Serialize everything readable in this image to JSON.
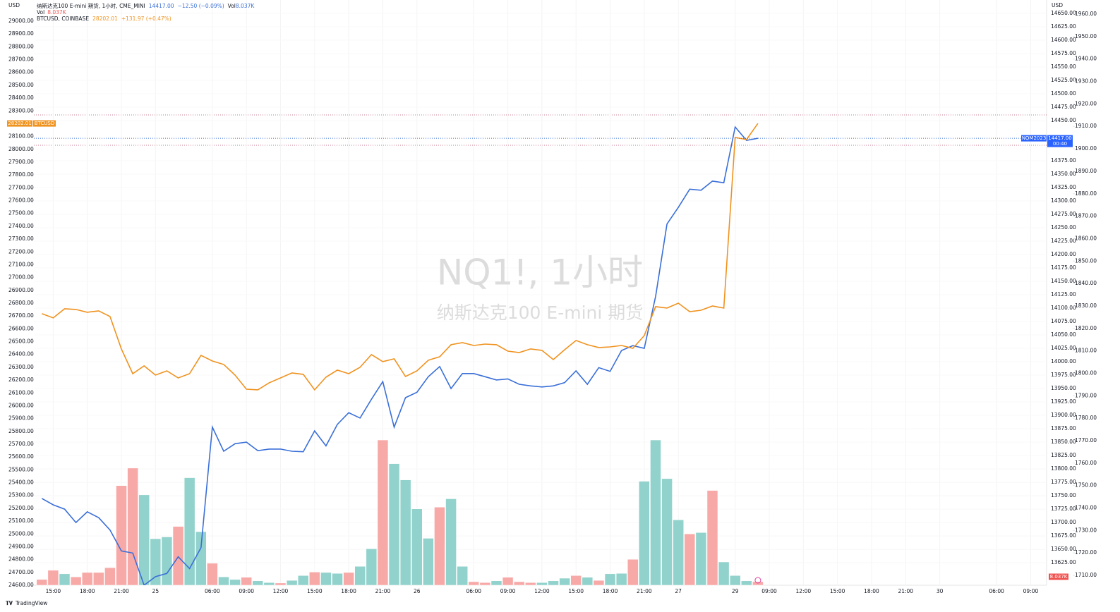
{
  "chart_data": {
    "type": "line",
    "currency_left": "USD",
    "currency_right": "USD",
    "watermark_title": "NQ1!, 1小时",
    "watermark_subtitle": "纳斯达克100 E-mini 期货",
    "brand": "TradingView",
    "grid": true,
    "xlim": [
      -0.7,
      88.4
    ],
    "xticks": [
      {
        "value": 1,
        "label": "15:00"
      },
      {
        "value": 4,
        "label": "18:00"
      },
      {
        "value": 7,
        "label": "21:00"
      },
      {
        "value": 10,
        "label": "25"
      },
      {
        "value": 15,
        "label": "06:00"
      },
      {
        "value": 18,
        "label": "09:00"
      },
      {
        "value": 21,
        "label": "12:00"
      },
      {
        "value": 24,
        "label": "15:00"
      },
      {
        "value": 27,
        "label": "18:00"
      },
      {
        "value": 30,
        "label": "21:00"
      },
      {
        "value": 33,
        "label": "26"
      },
      {
        "value": 38,
        "label": "06:00"
      },
      {
        "value": 41,
        "label": "09:00"
      },
      {
        "value": 44,
        "label": "12:00"
      },
      {
        "value": 47,
        "label": "15:00"
      },
      {
        "value": 50,
        "label": "18:00"
      },
      {
        "value": 53,
        "label": "21:00"
      },
      {
        "value": 56,
        "label": "27"
      },
      {
        "value": 61,
        "label": "29"
      },
      {
        "value": 64,
        "label": "09:00"
      },
      {
        "value": 67,
        "label": "12:00"
      },
      {
        "value": 70,
        "label": "15:00"
      },
      {
        "value": 73,
        "label": "18:00"
      },
      {
        "value": 76,
        "label": "21:00"
      },
      {
        "value": 79,
        "label": "30"
      },
      {
        "value": 84,
        "label": "06:00"
      },
      {
        "value": 87,
        "label": "09:00"
      }
    ],
    "ylim": [
      24600,
      29165
    ],
    "yticks": [
      {
        "value": 29000,
        "label": "29000.00"
      },
      {
        "value": 28900,
        "label": "28900.00"
      },
      {
        "value": 28800,
        "label": "28800.00"
      },
      {
        "value": 28700,
        "label": "28700.00"
      },
      {
        "value": 28600,
        "label": "28600.00"
      },
      {
        "value": 28500,
        "label": "28500.00"
      },
      {
        "value": 28400,
        "label": "28400.00"
      },
      {
        "value": 28300,
        "label": "28300.00"
      },
      {
        "value": 28100,
        "label": "28100.00"
      },
      {
        "value": 28000,
        "label": "28000.00"
      },
      {
        "value": 27900,
        "label": "27900.00"
      },
      {
        "value": 27800,
        "label": "27800.00"
      },
      {
        "value": 27700,
        "label": "27700.00"
      },
      {
        "value": 27600,
        "label": "27600.00"
      },
      {
        "value": 27500,
        "label": "27500.00"
      },
      {
        "value": 27400,
        "label": "27400.00"
      },
      {
        "value": 27300,
        "label": "27300.00"
      },
      {
        "value": 27200,
        "label": "27200.00"
      },
      {
        "value": 27100,
        "label": "27100.00"
      },
      {
        "value": 27000,
        "label": "27000.00"
      },
      {
        "value": 26900,
        "label": "26900.00"
      },
      {
        "value": 26800,
        "label": "26800.00"
      },
      {
        "value": 26700,
        "label": "26700.00"
      },
      {
        "value": 26600,
        "label": "26600.00"
      },
      {
        "value": 26500,
        "label": "26500.00"
      },
      {
        "value": 26400,
        "label": "26400.00"
      },
      {
        "value": 26300,
        "label": "26300.00"
      },
      {
        "value": 26200,
        "label": "26200.00"
      },
      {
        "value": 26100,
        "label": "26100.00"
      },
      {
        "value": 26000,
        "label": "26000.00"
      },
      {
        "value": 25900,
        "label": "25900.00"
      },
      {
        "value": 25800,
        "label": "25800.00"
      },
      {
        "value": 25700,
        "label": "25700.00"
      },
      {
        "value": 25600,
        "label": "25600.00"
      },
      {
        "value": 25500,
        "label": "25500.00"
      },
      {
        "value": 25400,
        "label": "25400.00"
      },
      {
        "value": 25300,
        "label": "25300.00"
      },
      {
        "value": 25200,
        "label": "25200.00"
      },
      {
        "value": 25100,
        "label": "25100.00"
      },
      {
        "value": 25000,
        "label": "25000.00"
      },
      {
        "value": 24900,
        "label": "24900.00"
      },
      {
        "value": 24800,
        "label": "24800.00"
      },
      {
        "value": 24700,
        "label": "24700.00"
      },
      {
        "value": 24600,
        "label": "24600.00"
      }
    ],
    "y2lim": [
      13583,
      14675
    ],
    "y2ticks": [
      {
        "value": 14650,
        "label": "14650.00"
      },
      {
        "value": 14625,
        "label": "14625.00"
      },
      {
        "value": 14600,
        "label": "14600.00"
      },
      {
        "value": 14575,
        "label": "14575.00"
      },
      {
        "value": 14550,
        "label": "14550.00"
      },
      {
        "value": 14525,
        "label": "14525.00"
      },
      {
        "value": 14500,
        "label": "14500.00"
      },
      {
        "value": 14475,
        "label": "14475.00"
      },
      {
        "value": 14450,
        "label": "14450.00"
      },
      {
        "value": 14375,
        "label": "14375.00"
      },
      {
        "value": 14350,
        "label": "14350.00"
      },
      {
        "value": 14325,
        "label": "14325.00"
      },
      {
        "value": 14300,
        "label": "14300.00"
      },
      {
        "value": 14275,
        "label": "14275.00"
      },
      {
        "value": 14250,
        "label": "14250.00"
      },
      {
        "value": 14225,
        "label": "14225.00"
      },
      {
        "value": 14200,
        "label": "14200.00"
      },
      {
        "value": 14175,
        "label": "14175.00"
      },
      {
        "value": 14150,
        "label": "14150.00"
      },
      {
        "value": 14125,
        "label": "14125.00"
      },
      {
        "value": 14100,
        "label": "14100.00"
      },
      {
        "value": 14075,
        "label": "14075.00"
      },
      {
        "value": 14050,
        "label": "14050.00"
      },
      {
        "value": 14025,
        "label": "14025.00"
      },
      {
        "value": 14000,
        "label": "14000.00"
      },
      {
        "value": 13975,
        "label": "13975.00"
      },
      {
        "value": 13950,
        "label": "13950.00"
      },
      {
        "value": 13925,
        "label": "13925.00"
      },
      {
        "value": 13900,
        "label": "13900.00"
      },
      {
        "value": 13875,
        "label": "13875.00"
      },
      {
        "value": 13850,
        "label": "13850.00"
      },
      {
        "value": 13825,
        "label": "13825.00"
      },
      {
        "value": 13800,
        "label": "13800.00"
      },
      {
        "value": 13775,
        "label": "13775.00"
      },
      {
        "value": 13750,
        "label": "13750.00"
      },
      {
        "value": 13725,
        "label": "13725.00"
      },
      {
        "value": 13700,
        "label": "13700.00"
      },
      {
        "value": 13675,
        "label": "13675.00"
      },
      {
        "value": 13650,
        "label": "13650.00"
      },
      {
        "value": 13625,
        "label": "13625.00"
      }
    ],
    "y3lim": [
      1705.6,
      1966.3
    ],
    "y3ticks": [
      {
        "value": 1960,
        "label": "1960.00"
      },
      {
        "value": 1950,
        "label": "1950.00"
      },
      {
        "value": 1940,
        "label": "1940.00"
      },
      {
        "value": 1930,
        "label": "1930.00"
      },
      {
        "value": 1920,
        "label": "1920.00"
      },
      {
        "value": 1910,
        "label": "1910.00"
      },
      {
        "value": 1900,
        "label": "1900.00"
      },
      {
        "value": 1890,
        "label": "1890.00"
      },
      {
        "value": 1880,
        "label": "1880.00"
      },
      {
        "value": 1870,
        "label": "1870.00"
      },
      {
        "value": 1860,
        "label": "1860.00"
      },
      {
        "value": 1850,
        "label": "1850.00"
      },
      {
        "value": 1840,
        "label": "1840.00"
      },
      {
        "value": 1830,
        "label": "1830.00"
      },
      {
        "value": 1820,
        "label": "1820.00"
      },
      {
        "value": 1810,
        "label": "1810.00"
      },
      {
        "value": 1800,
        "label": "1800.00"
      },
      {
        "value": 1790,
        "label": "1790.00"
      },
      {
        "value": 1780,
        "label": "1780.00"
      },
      {
        "value": 1770,
        "label": "1770.00"
      },
      {
        "value": 1760,
        "label": "1760.00"
      },
      {
        "value": 1750,
        "label": "1750.00"
      },
      {
        "value": 1740,
        "label": "1740.00"
      },
      {
        "value": 1730,
        "label": "1730.00"
      },
      {
        "value": 1720,
        "label": "1720.00"
      },
      {
        "value": 1710,
        "label": "1710.00"
      }
    ],
    "vol_ylim": [
      0,
      1334
    ],
    "x": [
      0,
      1,
      2,
      3,
      4,
      5,
      6,
      7,
      8,
      9,
      10,
      11,
      12,
      13,
      14,
      15,
      16,
      17,
      18,
      19,
      20,
      21,
      22,
      23,
      24,
      25,
      26,
      27,
      28,
      29,
      30,
      31,
      32,
      33,
      34,
      35,
      36,
      37,
      38,
      39,
      40,
      41,
      42,
      43,
      44,
      45,
      46,
      47,
      48,
      49,
      50,
      51,
      52,
      53,
      54,
      55,
      56,
      57,
      58,
      59,
      60,
      61,
      62,
      63
    ],
    "series": [
      {
        "name": "纳斯达克100 E-mini 期货, 1小时, CME_MINI",
        "axis": "y2",
        "color": "#3a6fd8",
        "last_label": "14417.00",
        "change_label": "−12.50 (−0.09%)",
        "badge_name": "NQM2023",
        "badge_time": "00:40",
        "values": [
          13745,
          13733,
          13725,
          13700,
          13720,
          13709,
          13686,
          13647,
          13643,
          13583,
          13599,
          13605,
          13636,
          13614,
          13653,
          13878,
          13833,
          13847,
          13850,
          13834,
          13837,
          13837,
          13833,
          13832,
          13871,
          13843,
          13883,
          13905,
          13895,
          13930,
          13963,
          13878,
          13933,
          13943,
          13972,
          13991,
          13950,
          13978,
          13978,
          13972,
          13966,
          13968,
          13958,
          13955,
          13953,
          13955,
          13961,
          13983,
          13958,
          13989,
          13982,
          14021,
          14030,
          14025,
          14122,
          14257,
          14288,
          14322,
          14320,
          14337,
          14334,
          14438,
          14413,
          14417
        ]
      },
      {
        "name": "BTCUSD, COINBASE",
        "axis": "y",
        "color": "#f0921e",
        "last_label": "28202.01",
        "change_label": "+131.97 (+0.47%)",
        "badge_name": "BTCUSD",
        "values": [
          26718,
          26685,
          26756,
          26751,
          26729,
          26740,
          26696,
          26443,
          26250,
          26311,
          26239,
          26272,
          26217,
          26250,
          26393,
          26349,
          26322,
          26239,
          26129,
          26124,
          26179,
          26217,
          26256,
          26245,
          26124,
          26223,
          26278,
          26250,
          26300,
          26399,
          26344,
          26366,
          26228,
          26272,
          26355,
          26382,
          26476,
          26492,
          26470,
          26481,
          26476,
          26426,
          26415,
          26443,
          26432,
          26360,
          26437,
          26509,
          26476,
          26454,
          26459,
          26470,
          26448,
          26547,
          26773,
          26762,
          26800,
          26734,
          26745,
          26778,
          26762,
          28093,
          28076,
          28202.01
        ]
      },
      {
        "name": "Vol",
        "axis": "vol",
        "last_label": "8.037K",
        "values": [
          13,
          34,
          26,
          19,
          29,
          29,
          40,
          227,
          267,
          206,
          106,
          110,
          134,
          245,
          122,
          50,
          19,
          13,
          18,
          10,
          6,
          5,
          11,
          22,
          30,
          29,
          27,
          29,
          43,
          83,
          331,
          277,
          240,
          174,
          107,
          178,
          197,
          43,
          8,
          6,
          10,
          18,
          8,
          6,
          6,
          10,
          16,
          22,
          18,
          11,
          26,
          27,
          59,
          237,
          331,
          243,
          149,
          117,
          120,
          216,
          53,
          22,
          10,
          8.037
        ],
        "colors": [
          "#f7a9a7",
          "#f7a9a7",
          "#92d2cc",
          "#f7a9a7",
          "#f7a9a7",
          "#f7a9a7",
          "#f7a9a7",
          "#f7a9a7",
          "#f7a9a7",
          "#92d2cc",
          "#92d2cc",
          "#92d2cc",
          "#f7a9a7",
          "#92d2cc",
          "#92d2cc",
          "#f7a9a7",
          "#92d2cc",
          "#92d2cc",
          "#f7a9a7",
          "#92d2cc",
          "#92d2cc",
          "#f7a9a7",
          "#92d2cc",
          "#92d2cc",
          "#f7a9a7",
          "#92d2cc",
          "#92d2cc",
          "#f7a9a7",
          "#92d2cc",
          "#92d2cc",
          "#f7a9a7",
          "#92d2cc",
          "#92d2cc",
          "#92d2cc",
          "#92d2cc",
          "#f7a9a7",
          "#92d2cc",
          "#92d2cc",
          "#f7a9a7",
          "#f7a9a7",
          "#92d2cc",
          "#f7a9a7",
          "#f7a9a7",
          "#f7a9a7",
          "#92d2cc",
          "#92d2cc",
          "#92d2cc",
          "#f7a9a7",
          "#92d2cc",
          "#f7a9a7",
          "#92d2cc",
          "#92d2cc",
          "#f7a9a7",
          "#92d2cc",
          "#92d2cc",
          "#92d2cc",
          "#92d2cc",
          "#f7a9a7",
          "#92d2cc",
          "#f7a9a7",
          "#92d2cc",
          "#92d2cc",
          "#92d2cc",
          "#f7a9a7"
        ]
      }
    ]
  }
}
